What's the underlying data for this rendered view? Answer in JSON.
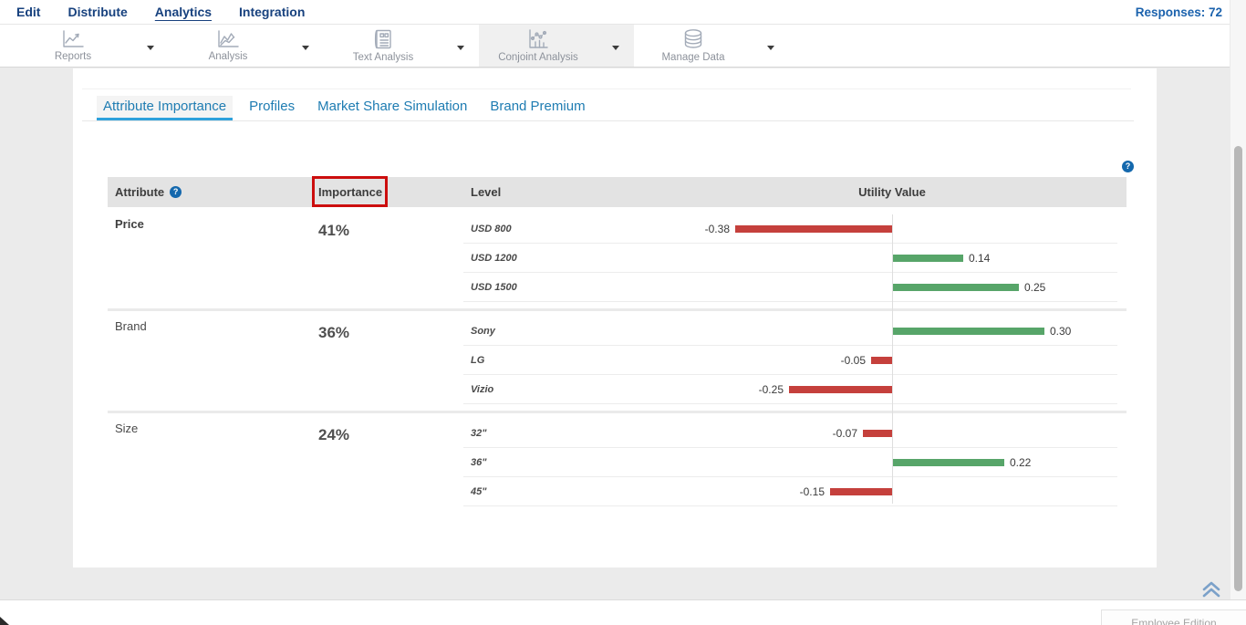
{
  "nav": {
    "items": [
      {
        "label": "Edit",
        "active": false
      },
      {
        "label": "Distribute",
        "active": false
      },
      {
        "label": "Analytics",
        "active": true
      },
      {
        "label": "Integration",
        "active": false
      }
    ],
    "responses_label": "Responses: 72"
  },
  "toolbar": {
    "items": [
      {
        "label": "Reports",
        "icon": "line-chart-icon",
        "active": false
      },
      {
        "label": "Analysis",
        "icon": "multi-line-chart-icon",
        "active": false
      },
      {
        "label": "Text Analysis",
        "icon": "text-document-icon",
        "active": false
      },
      {
        "label": "Conjoint Analysis",
        "icon": "conjoint-chart-icon",
        "active": true
      },
      {
        "label": "Manage Data",
        "icon": "database-icon",
        "active": false
      }
    ]
  },
  "tabs": [
    {
      "label": "Attribute Importance",
      "active": true
    },
    {
      "label": "Profiles",
      "active": false
    },
    {
      "label": "Market Share Simulation",
      "active": false
    },
    {
      "label": "Brand Premium",
      "active": false
    }
  ],
  "table": {
    "headers": {
      "attribute": "Attribute",
      "importance": "Importance",
      "level": "Level",
      "utility": "Utility Value"
    },
    "help_icon": "?",
    "groups": [
      {
        "attribute": "Price",
        "importance": "41%",
        "levels": [
          {
            "label": "USD 800",
            "value": -0.38,
            "display": "-0.38"
          },
          {
            "label": "USD 1200",
            "value": 0.14,
            "display": "0.14"
          },
          {
            "label": "USD 1500",
            "value": 0.25,
            "display": "0.25"
          }
        ]
      },
      {
        "attribute": "Brand",
        "importance": "36%",
        "levels": [
          {
            "label": "Sony",
            "value": 0.3,
            "display": "0.30"
          },
          {
            "label": "LG",
            "value": -0.05,
            "display": "-0.05"
          },
          {
            "label": "Vizio",
            "value": -0.25,
            "display": "-0.25"
          }
        ]
      },
      {
        "attribute": "Size",
        "importance": "24%",
        "levels": [
          {
            "label": "32\"",
            "value": -0.07,
            "display": "-0.07"
          },
          {
            "label": "36\"",
            "value": 0.22,
            "display": "0.22"
          },
          {
            "label": "45\"",
            "value": -0.15,
            "display": "-0.15"
          }
        ]
      }
    ]
  },
  "annotation": {
    "type": "highlight-box",
    "target": "importance-header",
    "color": "#cc0d0d"
  },
  "footer": {
    "edition_label": "Employee Edition"
  },
  "colors": {
    "bar_positive": "#57a569",
    "bar_negative": "#c5403c",
    "nav_blue": "#17417e",
    "link_blue": "#1b62ad",
    "tab_blue": "#1e7cb2",
    "tab_underline": "#2ea1dc",
    "help_blue": "#1468ad",
    "header_bg": "#e3e3e3",
    "annotation_red": "#cc0d0d"
  }
}
